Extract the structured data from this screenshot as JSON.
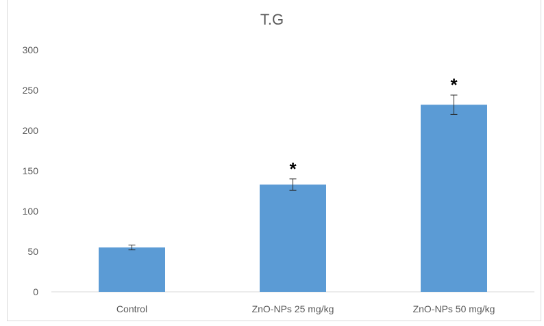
{
  "chart_data": {
    "type": "bar",
    "title": "T.G",
    "categories": [
      "Control",
      "ZnO-NPs 25 mg/kg",
      "ZnO-NPs 50 mg/kg"
    ],
    "values": [
      55,
      133,
      232
    ],
    "errors": [
      3,
      7,
      12
    ],
    "annotations": [
      "",
      "*",
      "*"
    ],
    "ylim": [
      0,
      300
    ],
    "yticks": [
      0,
      50,
      100,
      150,
      200,
      250,
      300
    ],
    "xlabel": "",
    "ylabel": "",
    "grid": false,
    "bar_color": "#5b9bd5",
    "axis_color": "#d9d9d9"
  }
}
